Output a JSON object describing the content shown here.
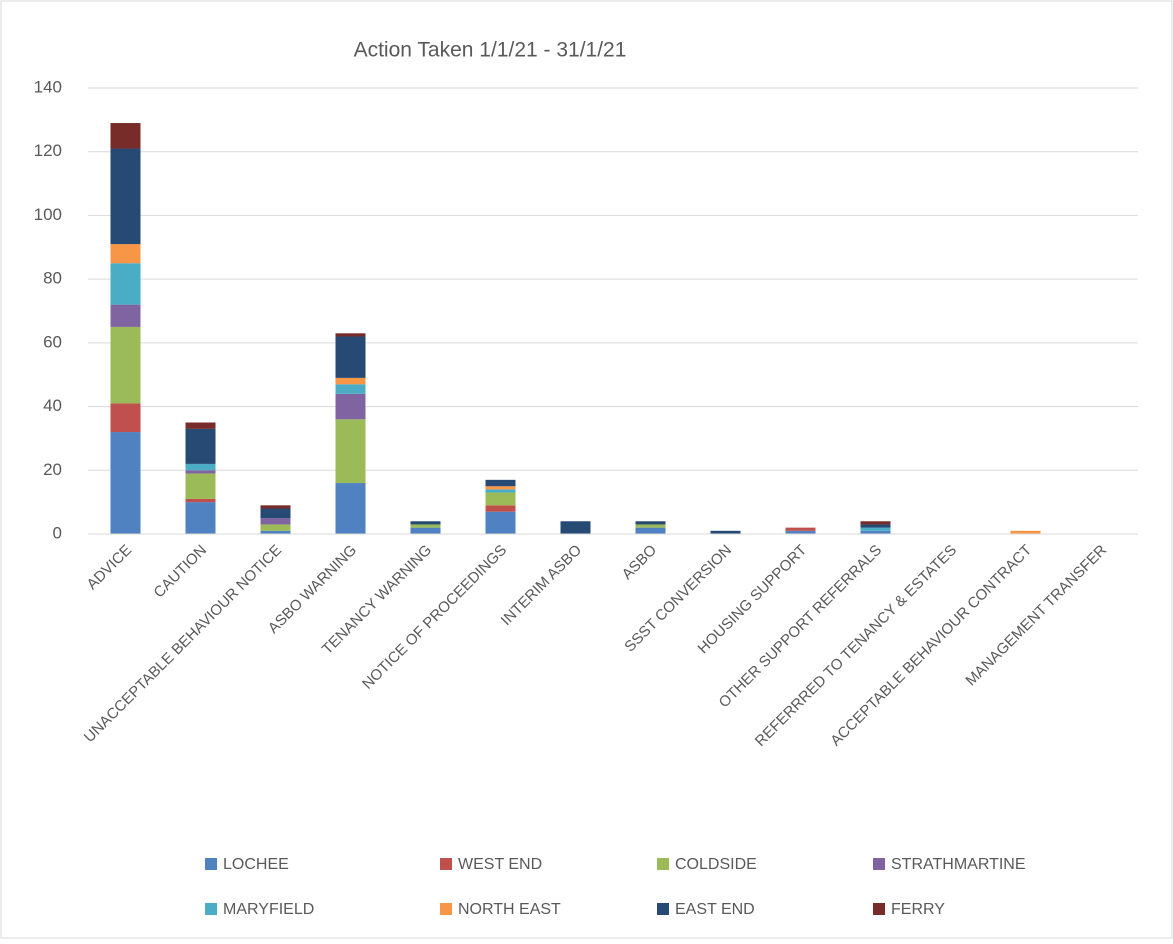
{
  "chart_data": {
    "type": "stacked_bar",
    "title": "Action Taken 1/1/21 - 31/1/21",
    "categories": [
      "ADVICE",
      "CAUTION",
      "UNACCEPTABLE BEHAVIOUR NOTICE",
      "ASBO WARNING",
      "TENANCY WARNING",
      "NOTICE OF PROCEEDINGS",
      "INTERIM ASBO",
      "ASBO",
      "SSST CONVERSION",
      "HOUSING SUPPORT",
      "OTHER SUPPORT REFERRALS",
      "REFERRRED TO TENANCY & ESTATES",
      "ACCEPTABLE BEHAVIOUR CONTRACT",
      "MANAGEMENT TRANSFER"
    ],
    "series": [
      {
        "name": "LOCHEE",
        "color": "#5081c0",
        "values": [
          32,
          10,
          1,
          16,
          2,
          7,
          0,
          2,
          0,
          1,
          1,
          0,
          0,
          0
        ]
      },
      {
        "name": "WEST END",
        "color": "#c0504d",
        "values": [
          9,
          1,
          0,
          0,
          0,
          2,
          0,
          0,
          0,
          1,
          0,
          0,
          0,
          0
        ]
      },
      {
        "name": "COLDSIDE",
        "color": "#9bbb59",
        "values": [
          24,
          8,
          2,
          20,
          1,
          4,
          0,
          1,
          0,
          0,
          0,
          0,
          0,
          0
        ]
      },
      {
        "name": "STRATHMARTINE",
        "color": "#8064a2",
        "values": [
          7,
          1,
          2,
          8,
          0,
          0,
          0,
          0,
          0,
          0,
          0,
          0,
          0,
          0
        ]
      },
      {
        "name": "MARYFIELD",
        "color": "#4bacc6",
        "values": [
          13,
          2,
          0,
          3,
          0,
          1,
          0,
          0,
          0,
          0,
          1,
          0,
          0,
          0
        ]
      },
      {
        "name": "NORTH EAST",
        "color": "#f79646",
        "values": [
          6,
          0,
          0,
          2,
          0,
          1,
          0,
          0,
          0,
          0,
          0,
          0,
          1,
          0
        ]
      },
      {
        "name": "EAST END",
        "color": "#264a73",
        "values": [
          30,
          11,
          3,
          13,
          1,
          2,
          4,
          1,
          1,
          0,
          1,
          0,
          0,
          0
        ]
      },
      {
        "name": "FERRY",
        "color": "#772c2a",
        "values": [
          8,
          2,
          1,
          1,
          0,
          0,
          0,
          0,
          0,
          0,
          1,
          0,
          0,
          0
        ]
      }
    ],
    "ylim": [
      0,
      140
    ],
    "yticks": [
      0,
      20,
      40,
      60,
      80,
      100,
      120,
      140
    ],
    "grid": true
  }
}
